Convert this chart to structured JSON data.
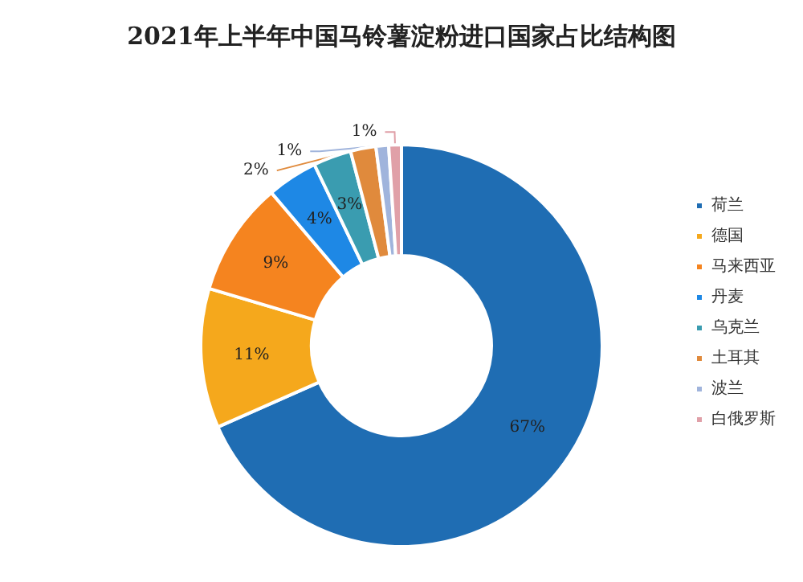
{
  "chart_data": {
    "type": "donut",
    "title": "2021年上半年中国马铃薯淀粉进口国家占比结构图",
    "categories": [
      "荷兰",
      "德国",
      "马来西亚",
      "丹麦",
      "乌克兰",
      "土耳其",
      "波兰",
      "白俄罗斯"
    ],
    "values": [
      67,
      11,
      9,
      4,
      3,
      2,
      1,
      1
    ],
    "colors": [
      "#1f6db3",
      "#f5a81c",
      "#f5841f",
      "#1e88e5",
      "#3a9cb0",
      "#e08a3c",
      "#a0b4dc",
      "#e0a0a8"
    ],
    "value_labels": [
      "67%",
      "11%",
      "9%",
      "4%",
      "3%",
      "2%",
      "1%",
      "1%"
    ],
    "legend": "right"
  }
}
